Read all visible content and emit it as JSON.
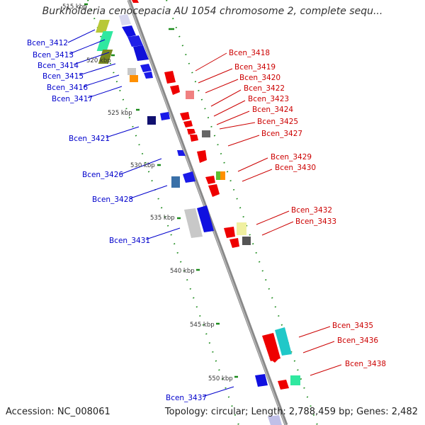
{
  "title": "Burkholderia cenocepacia AU 1054 chromosome 2, complete sequ...",
  "accession": "Accession: NC_008061",
  "footer": "Topology: circular; Length: 2,788,459 bp; Genes: 2,482",
  "kbp_labels": [
    {
      "text": "515 kbp"
    },
    {
      "text": "520 kbp"
    },
    {
      "text": "525 kbp"
    },
    {
      "text": "530 kbp"
    },
    {
      "text": "535 kbp"
    },
    {
      "text": "540 kbp"
    },
    {
      "text": "545 kbp"
    },
    {
      "text": "550 kbp"
    }
  ],
  "left_genes": [
    {
      "label": "Bcen_3412"
    },
    {
      "label": "Bcen_3413"
    },
    {
      "label": "Bcen_3414"
    },
    {
      "label": "Bcen_3415"
    },
    {
      "label": "Bcen_3416"
    },
    {
      "label": "Bcen_3417"
    },
    {
      "label": "Bcen_3421"
    },
    {
      "label": "Bcen_3426"
    },
    {
      "label": "Bcen_3428"
    },
    {
      "label": "Bcen_3431"
    },
    {
      "label": "Bcen_3437"
    }
  ],
  "right_genes": [
    {
      "label": "Bcen_3418"
    },
    {
      "label": "Bcen_3419"
    },
    {
      "label": "Bcen_3420"
    },
    {
      "label": "Bcen_3422"
    },
    {
      "label": "Bcen_3423"
    },
    {
      "label": "Bcen_3424"
    },
    {
      "label": "Bcen_3425"
    },
    {
      "label": "Bcen_3427"
    },
    {
      "label": "Bcen_3429"
    },
    {
      "label": "Bcen_3430"
    },
    {
      "label": "Bcen_3432"
    },
    {
      "label": "Bcen_3433"
    },
    {
      "label": "Bcen_3435"
    },
    {
      "label": "Bcen_3436"
    },
    {
      "label": "Bcen_3438"
    }
  ]
}
